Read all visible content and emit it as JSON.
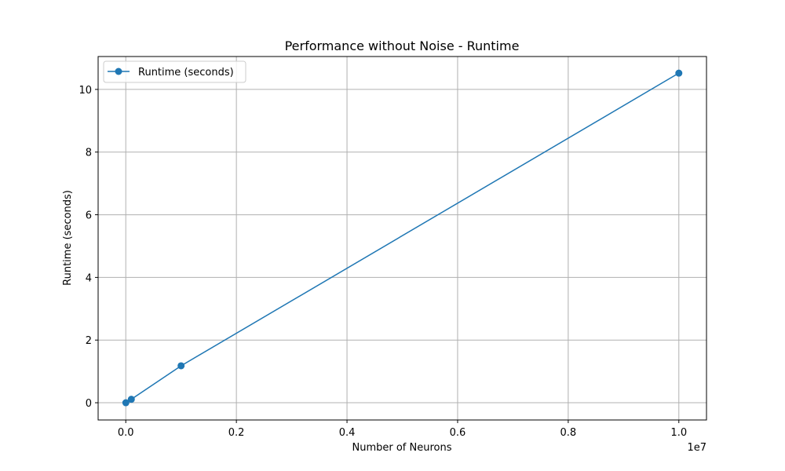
{
  "chart_data": {
    "type": "line",
    "title": "Performance without Noise - Runtime",
    "xlabel": "Number of Neurons",
    "ylabel": "Runtime (seconds)",
    "x_offset_label": "1e7",
    "x_scale": 10000000,
    "xlim": [
      -0.05,
      1.05
    ],
    "ylim": [
      -0.55,
      11.05
    ],
    "x_ticks": [
      0.0,
      0.2,
      0.4,
      0.6,
      0.8,
      1.0
    ],
    "x_tick_labels": [
      "0.0",
      "0.2",
      "0.4",
      "0.6",
      "0.8",
      "1.0"
    ],
    "y_ticks": [
      0,
      2,
      4,
      6,
      8,
      10
    ],
    "y_tick_labels": [
      "0",
      "2",
      "4",
      "6",
      "8",
      "10"
    ],
    "grid": true,
    "legend_position": "top-left",
    "series": [
      {
        "name": "Runtime (seconds)",
        "color": "#1f77b4",
        "marker": "circle",
        "x": [
          1000,
          100000,
          1000000,
          10000000
        ],
        "y": [
          0.0,
          0.11,
          1.18,
          10.52
        ]
      }
    ]
  }
}
